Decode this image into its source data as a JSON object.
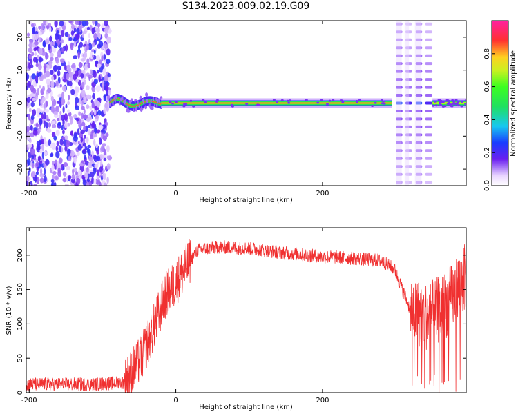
{
  "title": "S134.2023.009.02.19.G09",
  "colors": {
    "signal": "#e83a3a",
    "snr_line": "#f03030",
    "axis": "#000000",
    "noise": "#6a1ff0"
  },
  "chart_data": [
    {
      "type": "heatmap",
      "title": "S134.2023.009.02.19.G09",
      "xlabel": "Height of straight line (km)",
      "ylabel": "Frequency (Hz)",
      "xlim": [
        -204,
        396
      ],
      "ylim": [
        -25,
        25
      ],
      "xticks": [
        "-200",
        "0",
        "200"
      ],
      "xtick_values": [
        -200,
        0,
        200
      ],
      "yticks": [
        "-20",
        "-10",
        "0",
        "10",
        "20"
      ],
      "ytick_values": [
        -20,
        -10,
        0,
        10,
        20
      ],
      "colorbar": {
        "label": "Normalized spectral amplitude",
        "range": [
          0,
          1
        ],
        "ticks": [
          "0.0",
          "0.2",
          "0.4",
          "0.6",
          "0.8"
        ],
        "tick_values": [
          0,
          0.2,
          0.4,
          0.6,
          0.8
        ]
      },
      "regions": [
        {
          "x": [
            -204,
            -90
          ],
          "kind": "noise",
          "amplitude": 0.15
        },
        {
          "x": [
            -90,
            -20
          ],
          "kind": "wavy_signal",
          "amplitude": 0.6,
          "freq_hz": 0
        },
        {
          "x": [
            -20,
            295
          ],
          "kind": "steady_line",
          "amplitude": 1.0,
          "freq_hz": 0
        },
        {
          "x": [
            298,
            350
          ],
          "kind": "harmonic_comb",
          "amplitude": 0.15,
          "spacing_hz": 2.4
        },
        {
          "x": [
            350,
            396
          ],
          "kind": "steady_line",
          "amplitude": 0.8,
          "freq_hz": 0
        }
      ]
    },
    {
      "type": "line",
      "xlabel": "Height of straight line (km)",
      "ylabel": "SNR (10 * v/v)",
      "xlim": [
        -204,
        396
      ],
      "ylim": [
        0,
        240
      ],
      "xticks": [
        "-200",
        "0",
        "200"
      ],
      "xtick_values": [
        -200,
        0,
        200
      ],
      "yticks": [
        "0",
        "50",
        "100",
        "150",
        "200"
      ],
      "ytick_values": [
        0,
        50,
        100,
        150,
        200
      ],
      "envelope": {
        "x": [
          -204,
          -110,
          -70,
          -60,
          -45,
          -30,
          -15,
          0,
          15,
          30,
          60,
          100,
          150,
          200,
          250,
          280,
          298,
          320,
          345,
          370,
          396
        ],
        "y": [
          12,
          12,
          15,
          30,
          55,
          95,
          140,
          160,
          185,
          208,
          212,
          210,
          203,
          198,
          195,
          192,
          180,
          120,
          110,
          130,
          170
        ]
      },
      "noise_amplitude": 10,
      "dropout_region": [
        320,
        396
      ]
    }
  ]
}
